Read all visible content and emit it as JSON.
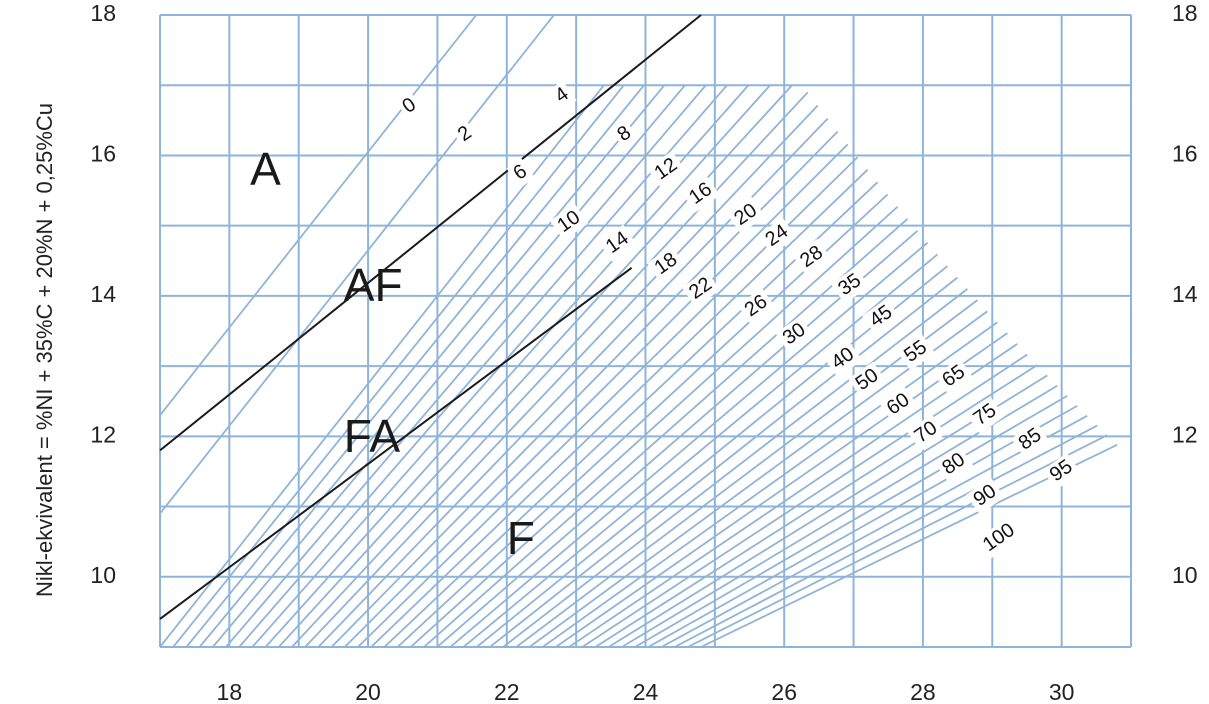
{
  "chart_data": {
    "type": "line",
    "title": "",
    "xlabel": "",
    "ylabel": "Nikl-ekvivalent = %NI + 35%C + 20%N + 0,25%Cu",
    "xlim": [
      17,
      31
    ],
    "ylim": [
      9,
      18
    ],
    "grid": true,
    "x_ticks": [
      "18",
      "20",
      "22",
      "24",
      "26",
      "28",
      "30"
    ],
    "y_ticks": [
      "10",
      "12",
      "14",
      "16",
      "18"
    ],
    "y_ticks_right": [
      "10",
      "12",
      "14",
      "16",
      "18"
    ],
    "regions": [
      {
        "label": "A",
        "x": 18.3,
        "y": 15.75
      },
      {
        "label": "AF",
        "x": 19.65,
        "y": 14.1
      },
      {
        "label": "FA",
        "x": 19.65,
        "y": 11.95
      },
      {
        "label": "F",
        "x": 22.0,
        "y": 10.5
      }
    ],
    "boundaries": [
      {
        "name": "A/AF",
        "x": [
          17,
          24.8
        ],
        "y": [
          11.8,
          18
        ]
      },
      {
        "name": "FA/F",
        "x": [
          17,
          23.8
        ],
        "y": [
          9.4,
          14.4
        ]
      }
    ],
    "iso_ferrite_labels": [
      {
        "label": "0",
        "x": 20.6,
        "y": 16.7
      },
      {
        "label": "2",
        "x": 21.4,
        "y": 16.3
      },
      {
        "label": "4",
        "x": 22.8,
        "y": 16.85
      },
      {
        "label": "6",
        "x": 22.2,
        "y": 15.75
      },
      {
        "label": "8",
        "x": 23.7,
        "y": 16.3
      },
      {
        "label": "10",
        "x": 22.9,
        "y": 15.05
      },
      {
        "label": "12",
        "x": 24.3,
        "y": 15.8
      },
      {
        "label": "14",
        "x": 23.6,
        "y": 14.75
      },
      {
        "label": "16",
        "x": 24.8,
        "y": 15.45
      },
      {
        "label": "18",
        "x": 24.3,
        "y": 14.45
      },
      {
        "label": "20",
        "x": 25.45,
        "y": 15.15
      },
      {
        "label": "22",
        "x": 24.8,
        "y": 14.1
      },
      {
        "label": "24",
        "x": 25.9,
        "y": 14.85
      },
      {
        "label": "26",
        "x": 25.6,
        "y": 13.85
      },
      {
        "label": "28",
        "x": 26.4,
        "y": 14.55
      },
      {
        "label": "30",
        "x": 26.15,
        "y": 13.45
      },
      {
        "label": "35",
        "x": 26.95,
        "y": 14.15
      },
      {
        "label": "40",
        "x": 26.85,
        "y": 13.1
      },
      {
        "label": "45",
        "x": 27.4,
        "y": 13.7
      },
      {
        "label": "50",
        "x": 27.2,
        "y": 12.8
      },
      {
        "label": "55",
        "x": 27.9,
        "y": 13.2
      },
      {
        "label": "60",
        "x": 27.65,
        "y": 12.45
      },
      {
        "label": "65",
        "x": 28.45,
        "y": 12.85
      },
      {
        "label": "70",
        "x": 28.05,
        "y": 12.05
      },
      {
        "label": "75",
        "x": 28.9,
        "y": 12.3
      },
      {
        "label": "80",
        "x": 28.45,
        "y": 11.6
      },
      {
        "label": "85",
        "x": 29.55,
        "y": 11.95
      },
      {
        "label": "90",
        "x": 28.9,
        "y": 11.15
      },
      {
        "label": "95",
        "x": 30.0,
        "y": 11.5
      },
      {
        "label": "100",
        "x": 29.1,
        "y": 10.55
      }
    ]
  }
}
